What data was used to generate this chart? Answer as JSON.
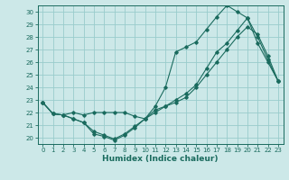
{
  "xlabel": "Humidex (Indice chaleur)",
  "xlim": [
    -0.5,
    23.5
  ],
  "ylim": [
    19.5,
    30.5
  ],
  "xticks": [
    0,
    1,
    2,
    3,
    4,
    5,
    6,
    7,
    8,
    9,
    10,
    11,
    12,
    13,
    14,
    15,
    16,
    17,
    18,
    19,
    20,
    21,
    22,
    23
  ],
  "yticks": [
    20,
    21,
    22,
    23,
    24,
    25,
    26,
    27,
    28,
    29,
    30
  ],
  "bg_color": "#cce8e8",
  "grid_color": "#99cccc",
  "line_color": "#1a6b5e",
  "line1_x": [
    0,
    1,
    2,
    3,
    4,
    5,
    6,
    7,
    8,
    9,
    10,
    11,
    12,
    13,
    14,
    15,
    16,
    17,
    18,
    19,
    20,
    21,
    22,
    23
  ],
  "line1_y": [
    22.8,
    21.9,
    21.8,
    22.0,
    21.8,
    22.0,
    22.0,
    22.0,
    22.0,
    21.7,
    21.5,
    22.5,
    24.0,
    26.8,
    27.2,
    27.6,
    28.6,
    29.6,
    30.5,
    30.0,
    29.5,
    28.0,
    26.2,
    24.5
  ],
  "line2_x": [
    0,
    1,
    2,
    3,
    4,
    5,
    6,
    7,
    8,
    9,
    10,
    11,
    12,
    13,
    14,
    15,
    16,
    17,
    18,
    19,
    20,
    21,
    22,
    23
  ],
  "line2_y": [
    22.8,
    21.9,
    21.8,
    21.5,
    21.2,
    20.3,
    20.1,
    19.8,
    20.2,
    20.8,
    21.5,
    22.2,
    22.5,
    23.0,
    23.5,
    24.2,
    25.5,
    26.8,
    27.5,
    28.5,
    29.5,
    27.5,
    26.0,
    24.5
  ],
  "line3_x": [
    0,
    1,
    2,
    3,
    4,
    5,
    6,
    7,
    8,
    9,
    10,
    11,
    12,
    13,
    14,
    15,
    16,
    17,
    18,
    19,
    20,
    21,
    22,
    23
  ],
  "line3_y": [
    22.8,
    21.9,
    21.8,
    21.5,
    21.2,
    20.5,
    20.2,
    19.9,
    20.3,
    20.9,
    21.5,
    22.0,
    22.5,
    22.8,
    23.2,
    24.0,
    25.0,
    26.0,
    27.0,
    28.0,
    28.8,
    28.2,
    26.5,
    24.5
  ]
}
